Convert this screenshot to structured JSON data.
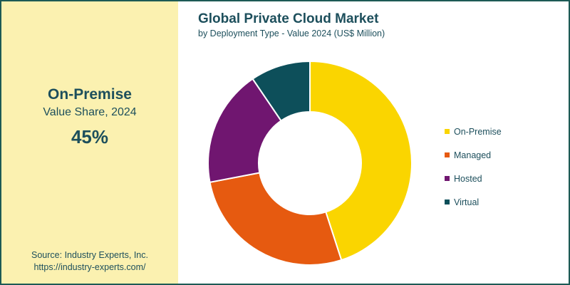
{
  "highlight": {
    "segment": "On-Premise",
    "label": "Value Share, 2024",
    "value": "45%"
  },
  "source": {
    "line1": "Source: Industry Experts, Inc.",
    "line2": "https://industry-experts.com/"
  },
  "colors": {
    "accent_text": "#1d4f5c",
    "panel_bg": "#fbf1b0",
    "border": "#1d5a55"
  },
  "chart_data": {
    "type": "pie",
    "style": "donut",
    "title": "Global Private Cloud Market",
    "subtitle": "by Deployment Type - Value 2024 (US$ Million)",
    "legend_position": "right",
    "categories": [
      "On-Premise",
      "Managed",
      "Hosted",
      "Virtual"
    ],
    "values": [
      45,
      27,
      18.5,
      9.5
    ],
    "colors": [
      "#fad500",
      "#e65a10",
      "#701670",
      "#0d4f5a"
    ]
  }
}
